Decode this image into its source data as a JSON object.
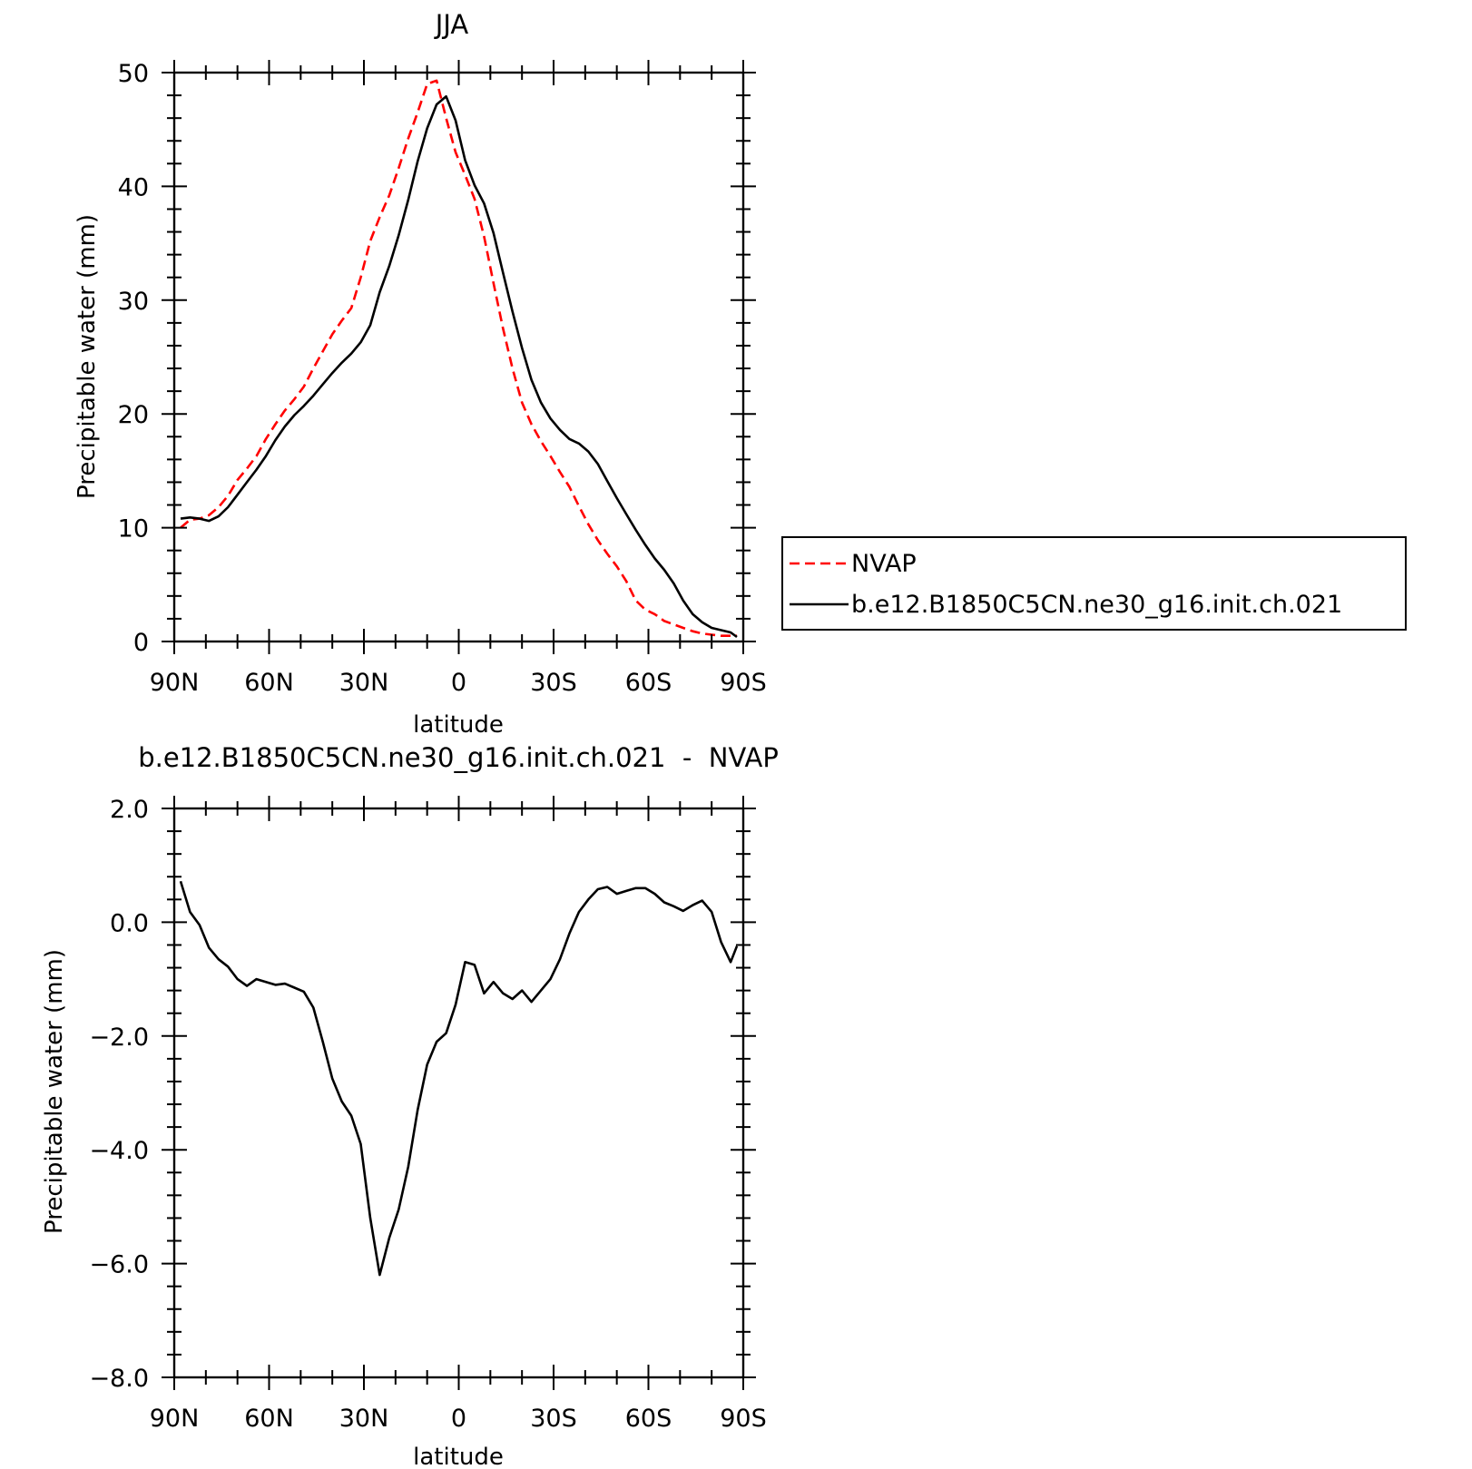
{
  "chart_data": [
    {
      "type": "line",
      "title": "JJA",
      "xlabel": "latitude",
      "ylabel": "Precipitable water (mm)",
      "xlim": [
        90,
        -90
      ],
      "ylim": [
        0,
        50
      ],
      "x_ticks": [
        90,
        60,
        30,
        0,
        -30,
        -60,
        -90
      ],
      "x_tick_labels": [
        "90N",
        "60N",
        "30N",
        "0",
        "30S",
        "60S",
        "90S"
      ],
      "y_ticks": [
        0,
        10,
        20,
        30,
        40,
        50
      ],
      "y_tick_labels": [
        "0",
        "10",
        "20",
        "30",
        "40",
        "50"
      ],
      "grid": false,
      "legend_position": "right",
      "series": [
        {
          "name": "NVAP",
          "color": "#ff0000",
          "style": "dashed",
          "x": [
            88,
            85,
            82,
            79,
            76,
            73,
            70,
            67,
            64,
            61,
            58,
            55,
            52,
            49,
            46,
            43,
            40,
            37,
            34,
            31,
            28,
            25,
            22,
            19,
            16,
            13,
            10,
            7,
            4,
            1,
            -2,
            -5,
            -8,
            -11,
            -14,
            -17,
            -20,
            -23,
            -26,
            -29,
            -32,
            -35,
            -38,
            -41,
            -44,
            -47,
            -50,
            -53,
            -56,
            -59,
            -62,
            -65,
            -68,
            -71,
            -74,
            -77,
            -80,
            -83,
            -86,
            -88
          ],
          "values": [
            10.0,
            10.7,
            10.8,
            11.1,
            11.8,
            12.8,
            14.2,
            15.2,
            16.3,
            17.8,
            19.1,
            20.3,
            21.3,
            22.4,
            24.0,
            25.5,
            27.0,
            28.2,
            29.3,
            32.0,
            35.2,
            37.3,
            39.2,
            41.6,
            44.2,
            46.5,
            49.0,
            49.3,
            46.0,
            43.0,
            41.0,
            38.9,
            35.6,
            31.5,
            27.5,
            24.0,
            21.0,
            19.1,
            17.6,
            16.3,
            14.9,
            13.6,
            11.9,
            10.3,
            8.9,
            7.7,
            6.6,
            5.3,
            3.6,
            2.8,
            2.4,
            1.8,
            1.5,
            1.2,
            0.9,
            0.7,
            0.6,
            0.5,
            0.5,
            0.5
          ]
        },
        {
          "name": "b.e12.B1850C5CN.ne30_g16.init.ch.021",
          "color": "#000000",
          "style": "solid",
          "x": [
            88,
            85,
            82,
            79,
            76,
            73,
            70,
            67,
            64,
            61,
            58,
            55,
            52,
            49,
            46,
            43,
            40,
            37,
            34,
            31,
            28,
            25,
            22,
            19,
            16,
            13,
            10,
            7,
            4,
            1,
            -2,
            -5,
            -8,
            -11,
            -14,
            -17,
            -20,
            -23,
            -26,
            -29,
            -32,
            -35,
            -38,
            -41,
            -44,
            -47,
            -50,
            -53,
            -56,
            -59,
            -62,
            -65,
            -68,
            -71,
            -74,
            -77,
            -80,
            -83,
            -86,
            -88
          ],
          "values": [
            10.8,
            10.9,
            10.8,
            10.6,
            11.0,
            11.8,
            12.9,
            14.0,
            15.1,
            16.3,
            17.7,
            18.9,
            19.9,
            20.7,
            21.6,
            22.6,
            23.6,
            24.5,
            25.3,
            26.3,
            27.8,
            30.7,
            33.0,
            35.7,
            38.8,
            42.2,
            45.1,
            47.2,
            47.9,
            45.8,
            42.3,
            40.1,
            38.5,
            35.9,
            32.4,
            29.0,
            25.8,
            23.0,
            21.0,
            19.6,
            18.6,
            17.8,
            17.4,
            16.7,
            15.6,
            14.1,
            12.6,
            11.2,
            9.8,
            8.5,
            7.3,
            6.3,
            5.1,
            3.6,
            2.4,
            1.7,
            1.2,
            1.0,
            0.8,
            0.4
          ]
        }
      ]
    },
    {
      "type": "line",
      "title": "b.e12.B1850C5CN.ne30_g16.init.ch.021  -  NVAP",
      "xlabel": "latitude",
      "ylabel": "Precipitable water (mm)",
      "xlim": [
        90,
        -90
      ],
      "ylim": [
        -8.0,
        2.0
      ],
      "x_ticks": [
        90,
        60,
        30,
        0,
        -30,
        -60,
        -90
      ],
      "x_tick_labels": [
        "90N",
        "60N",
        "30N",
        "0",
        "30S",
        "60S",
        "90S"
      ],
      "y_ticks": [
        2.0,
        0.0,
        -2.0,
        -4.0,
        -6.0,
        -8.0
      ],
      "y_tick_labels": [
        "2.0",
        "0.0",
        "−2.0",
        "−4.0",
        "−6.0",
        "−8.0"
      ],
      "grid": false,
      "series": [
        {
          "color": "#000000",
          "style": "solid",
          "x": [
            88,
            85,
            82,
            79,
            76,
            73,
            70,
            67,
            64,
            61,
            58,
            55,
            52,
            49,
            46,
            43,
            40,
            37,
            34,
            31,
            28,
            25,
            22,
            19,
            16,
            13,
            10,
            7,
            4,
            1,
            -2,
            -5,
            -8,
            -11,
            -14,
            -17,
            -20,
            -23,
            -26,
            -29,
            -32,
            -35,
            -38,
            -41,
            -44,
            -47,
            -50,
            -53,
            -56,
            -59,
            -62,
            -65,
            -68,
            -71,
            -74,
            -77,
            -80,
            -83,
            -86,
            -88
          ],
          "values": [
            0.72,
            0.18,
            -0.05,
            -0.45,
            -0.65,
            -0.78,
            -1.0,
            -1.12,
            -1.0,
            -1.05,
            -1.1,
            -1.08,
            -1.15,
            -1.22,
            -1.5,
            -2.1,
            -2.75,
            -3.15,
            -3.4,
            -3.9,
            -5.2,
            -6.2,
            -5.55,
            -5.05,
            -4.3,
            -3.3,
            -2.5,
            -2.1,
            -1.95,
            -1.45,
            -0.7,
            -0.75,
            -1.25,
            -1.05,
            -1.25,
            -1.35,
            -1.2,
            -1.4,
            -1.2,
            -1.0,
            -0.65,
            -0.2,
            0.18,
            0.4,
            0.58,
            0.62,
            0.5,
            0.55,
            0.6,
            0.6,
            0.5,
            0.35,
            0.28,
            0.2,
            0.3,
            0.38,
            0.18,
            -0.35,
            -0.7,
            -0.42
          ]
        }
      ]
    }
  ]
}
